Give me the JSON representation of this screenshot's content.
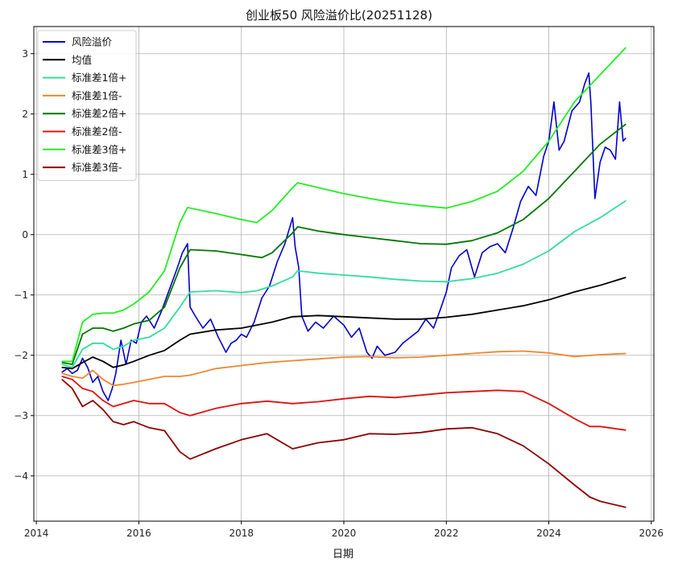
{
  "chart_data": {
    "type": "line",
    "title": "创业板50 风险溢价比(20251128)",
    "xlabel": "日期",
    "ylabel": "",
    "xlim": [
      2013.95,
      2026.05
    ],
    "ylim": [
      -4.75,
      3.45
    ],
    "x_ticks": [
      2014,
      2016,
      2018,
      2020,
      2022,
      2024,
      2026
    ],
    "x_tick_labels": [
      "2014",
      "2016",
      "2018",
      "2020",
      "2022",
      "2024",
      "2026"
    ],
    "y_ticks": [
      -4,
      -3,
      -2,
      -1,
      0,
      1,
      2,
      3
    ],
    "y_tick_labels": [
      "−4",
      "−3",
      "−2",
      "−1",
      "0",
      "1",
      "2",
      "3"
    ],
    "grid": true,
    "legend_position": "top-left",
    "series": [
      {
        "name": "风险溢价",
        "color": "#0000cc",
        "x": [
          2014.5,
          2014.6,
          2014.7,
          2014.8,
          2014.9,
          2015.0,
          2015.1,
          2015.2,
          2015.3,
          2015.4,
          2015.48,
          2015.55,
          2015.65,
          2015.75,
          2015.85,
          2015.95,
          2016.05,
          2016.15,
          2016.3,
          2016.45,
          2016.6,
          2016.75,
          2016.85,
          2016.95,
          2017.0,
          2017.1,
          2017.25,
          2017.4,
          2017.55,
          2017.7,
          2017.8,
          2017.9,
          2018.0,
          2018.1,
          2018.25,
          2018.4,
          2018.55,
          2018.7,
          2018.85,
          2019.0,
          2019.05,
          2019.12,
          2019.18,
          2019.3,
          2019.45,
          2019.6,
          2019.8,
          2020.0,
          2020.15,
          2020.3,
          2020.45,
          2020.55,
          2020.65,
          2020.8,
          2021.0,
          2021.15,
          2021.3,
          2021.45,
          2021.6,
          2021.75,
          2021.9,
          2022.0,
          2022.1,
          2022.25,
          2022.4,
          2022.55,
          2022.7,
          2022.85,
          2023.0,
          2023.15,
          2023.3,
          2023.45,
          2023.6,
          2023.75,
          2023.9,
          2024.0,
          2024.1,
          2024.2,
          2024.3,
          2024.45,
          2024.6,
          2024.7,
          2024.78,
          2024.82,
          2024.9,
          2025.0,
          2025.1,
          2025.2,
          2025.3,
          2025.38,
          2025.45,
          2025.5
        ],
        "values": [
          -2.28,
          -2.22,
          -2.3,
          -2.25,
          -2.05,
          -2.2,
          -2.45,
          -2.35,
          -2.6,
          -2.75,
          -2.55,
          -2.3,
          -1.75,
          -2.15,
          -1.75,
          -1.8,
          -1.45,
          -1.35,
          -1.55,
          -1.25,
          -0.9,
          -0.55,
          -0.3,
          -0.15,
          -1.2,
          -1.35,
          -1.55,
          -1.4,
          -1.7,
          -1.95,
          -1.8,
          -1.75,
          -1.65,
          -1.7,
          -1.45,
          -1.05,
          -0.85,
          -0.45,
          -0.15,
          0.28,
          -0.2,
          -0.55,
          -1.35,
          -1.6,
          -1.45,
          -1.55,
          -1.35,
          -1.5,
          -1.7,
          -1.55,
          -1.95,
          -2.05,
          -1.85,
          -2.0,
          -1.95,
          -1.8,
          -1.7,
          -1.6,
          -1.4,
          -1.55,
          -1.2,
          -0.95,
          -0.55,
          -0.35,
          -0.25,
          -0.7,
          -0.3,
          -0.2,
          -0.15,
          -0.3,
          0.1,
          0.55,
          0.8,
          0.65,
          1.3,
          1.55,
          2.2,
          1.4,
          1.55,
          2.05,
          2.2,
          2.5,
          2.68,
          2.2,
          0.6,
          1.2,
          1.45,
          1.4,
          1.25,
          2.2,
          1.55,
          1.6
        ]
      },
      {
        "name": "均值",
        "color": "#000000",
        "x": [
          2014.5,
          2014.7,
          2014.9,
          2015.1,
          2015.3,
          2015.5,
          2015.7,
          2015.9,
          2016.2,
          2016.5,
          2016.8,
          2017.0,
          2017.5,
          2018.0,
          2018.3,
          2018.6,
          2019.0,
          2019.5,
          2020.0,
          2020.5,
          2021.0,
          2021.5,
          2022.0,
          2022.5,
          2023.0,
          2023.5,
          2024.0,
          2024.5,
          2025.0,
          2025.5
        ],
        "values": [
          -2.2,
          -2.22,
          -2.12,
          -2.03,
          -2.1,
          -2.2,
          -2.16,
          -2.1,
          -2.0,
          -1.92,
          -1.75,
          -1.65,
          -1.58,
          -1.55,
          -1.5,
          -1.45,
          -1.36,
          -1.34,
          -1.36,
          -1.38,
          -1.4,
          -1.4,
          -1.37,
          -1.32,
          -1.25,
          -1.18,
          -1.08,
          -0.95,
          -0.84,
          -0.71
        ]
      },
      {
        "name": "标准差1倍+",
        "color": "#33dd99",
        "x": [
          2014.5,
          2014.7,
          2014.9,
          2015.1,
          2015.3,
          2015.5,
          2015.7,
          2015.9,
          2016.2,
          2016.5,
          2016.8,
          2017.0,
          2017.5,
          2018.0,
          2018.3,
          2018.6,
          2019.0,
          2019.1,
          2019.5,
          2020.0,
          2020.5,
          2021.0,
          2021.5,
          2022.0,
          2022.5,
          2023.0,
          2023.5,
          2024.0,
          2024.5,
          2025.0,
          2025.5
        ],
        "values": [
          -2.15,
          -2.2,
          -1.9,
          -1.8,
          -1.8,
          -1.9,
          -1.85,
          -1.75,
          -1.7,
          -1.55,
          -1.2,
          -0.95,
          -0.93,
          -0.96,
          -0.93,
          -0.85,
          -0.7,
          -0.6,
          -0.64,
          -0.67,
          -0.7,
          -0.74,
          -0.77,
          -0.78,
          -0.73,
          -0.64,
          -0.49,
          -0.27,
          0.05,
          0.28,
          0.56
        ]
      },
      {
        "name": "标准差1倍-",
        "color": "#ee8833",
        "x": [
          2014.5,
          2014.7,
          2014.9,
          2015.1,
          2015.3,
          2015.5,
          2015.7,
          2015.9,
          2016.2,
          2016.5,
          2016.8,
          2017.0,
          2017.5,
          2018.0,
          2018.5,
          2019.0,
          2019.5,
          2020.0,
          2020.5,
          2021.0,
          2021.5,
          2022.0,
          2022.5,
          2023.0,
          2023.5,
          2024.0,
          2024.5,
          2025.0,
          2025.5
        ],
        "values": [
          -2.3,
          -2.35,
          -2.38,
          -2.25,
          -2.4,
          -2.5,
          -2.48,
          -2.45,
          -2.4,
          -2.35,
          -2.35,
          -2.33,
          -2.22,
          -2.17,
          -2.12,
          -2.09,
          -2.06,
          -2.03,
          -2.02,
          -2.04,
          -2.03,
          -2.0,
          -1.97,
          -1.94,
          -1.93,
          -1.96,
          -2.02,
          -1.99,
          -1.97
        ]
      },
      {
        "name": "标准差2倍+",
        "color": "#007700",
        "x": [
          2014.5,
          2014.7,
          2014.9,
          2015.1,
          2015.3,
          2015.5,
          2015.7,
          2015.9,
          2016.2,
          2016.5,
          2016.8,
          2017.0,
          2017.5,
          2018.0,
          2018.4,
          2018.6,
          2019.0,
          2019.1,
          2019.5,
          2020.0,
          2020.5,
          2021.0,
          2021.5,
          2022.0,
          2022.5,
          2023.0,
          2023.5,
          2024.0,
          2024.5,
          2025.0,
          2025.5
        ],
        "values": [
          -2.12,
          -2.15,
          -1.65,
          -1.55,
          -1.55,
          -1.6,
          -1.55,
          -1.48,
          -1.42,
          -1.2,
          -0.55,
          -0.25,
          -0.27,
          -0.33,
          -0.38,
          -0.3,
          0.03,
          0.13,
          0.06,
          0.0,
          -0.05,
          -0.1,
          -0.15,
          -0.16,
          -0.1,
          0.03,
          0.25,
          0.6,
          1.05,
          1.5,
          1.83
        ]
      },
      {
        "name": "标准差2倍-",
        "color": "#dd1111",
        "x": [
          2014.5,
          2014.7,
          2014.9,
          2015.1,
          2015.3,
          2015.5,
          2015.7,
          2015.9,
          2016.2,
          2016.5,
          2016.8,
          2017.0,
          2017.5,
          2018.0,
          2018.5,
          2019.0,
          2019.5,
          2020.0,
          2020.5,
          2021.0,
          2021.5,
          2022.0,
          2022.5,
          2023.0,
          2023.5,
          2024.0,
          2024.5,
          2024.8,
          2025.0,
          2025.5
        ],
        "values": [
          -2.35,
          -2.4,
          -2.55,
          -2.6,
          -2.75,
          -2.85,
          -2.8,
          -2.75,
          -2.8,
          -2.8,
          -2.95,
          -3.0,
          -2.88,
          -2.8,
          -2.76,
          -2.8,
          -2.77,
          -2.72,
          -2.68,
          -2.7,
          -2.66,
          -2.62,
          -2.6,
          -2.58,
          -2.6,
          -2.8,
          -3.05,
          -3.18,
          -3.18,
          -3.24
        ]
      },
      {
        "name": "标准差3倍+",
        "color": "#22ee22",
        "x": [
          2014.5,
          2014.7,
          2014.9,
          2015.1,
          2015.3,
          2015.5,
          2015.7,
          2015.9,
          2016.2,
          2016.5,
          2016.8,
          2016.95,
          2017.5,
          2018.0,
          2018.3,
          2018.6,
          2019.0,
          2019.1,
          2019.5,
          2020.0,
          2020.5,
          2021.0,
          2021.5,
          2022.0,
          2022.5,
          2023.0,
          2023.5,
          2024.0,
          2024.5,
          2025.0,
          2025.5
        ],
        "values": [
          -2.1,
          -2.1,
          -1.45,
          -1.32,
          -1.3,
          -1.3,
          -1.25,
          -1.15,
          -0.95,
          -0.6,
          0.2,
          0.45,
          0.35,
          0.25,
          0.2,
          0.4,
          0.78,
          0.86,
          0.78,
          0.68,
          0.6,
          0.53,
          0.48,
          0.44,
          0.55,
          0.72,
          1.05,
          1.55,
          2.2,
          2.65,
          3.1
        ]
      },
      {
        "name": "标准差3倍-",
        "color": "#8b0000",
        "x": [
          2014.5,
          2014.7,
          2014.9,
          2015.1,
          2015.3,
          2015.5,
          2015.7,
          2015.9,
          2016.2,
          2016.5,
          2016.8,
          2017.0,
          2017.5,
          2018.0,
          2018.5,
          2019.0,
          2019.5,
          2020.0,
          2020.5,
          2021.0,
          2021.5,
          2022.0,
          2022.5,
          2023.0,
          2023.5,
          2024.0,
          2024.5,
          2024.8,
          2025.0,
          2025.5
        ],
        "values": [
          -2.4,
          -2.55,
          -2.85,
          -2.75,
          -2.9,
          -3.1,
          -3.15,
          -3.1,
          -3.2,
          -3.25,
          -3.6,
          -3.72,
          -3.55,
          -3.4,
          -3.3,
          -3.55,
          -3.45,
          -3.4,
          -3.3,
          -3.31,
          -3.28,
          -3.22,
          -3.2,
          -3.3,
          -3.5,
          -3.8,
          -4.15,
          -4.35,
          -4.42,
          -4.52
        ]
      }
    ]
  }
}
